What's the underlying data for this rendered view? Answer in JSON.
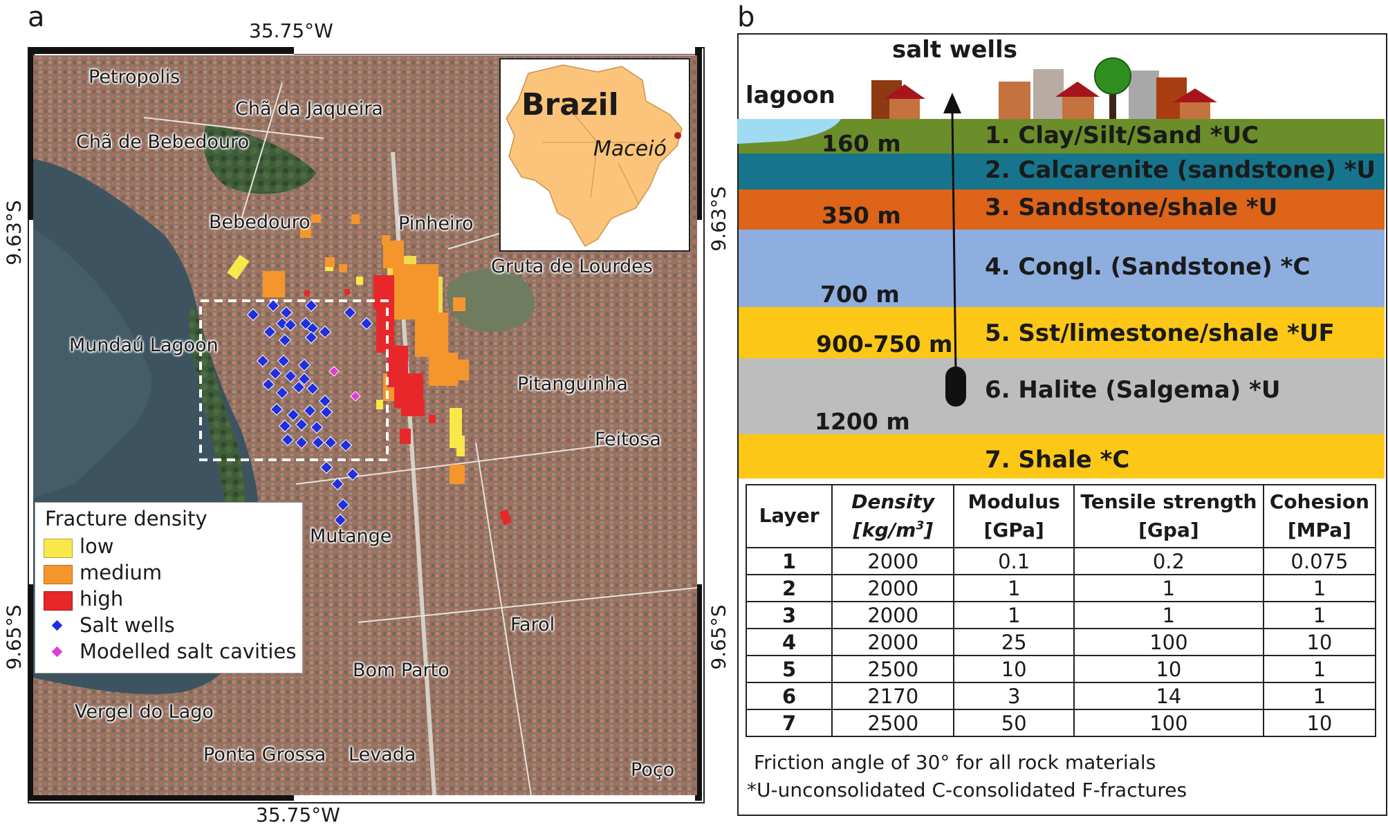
{
  "panel_a": {
    "letter": "a",
    "coords": {
      "top_lon": "35.75°W",
      "bottom_lon": "35.75°W",
      "left_lat_upper": "9.63°S",
      "left_lat_lower": "9.65°S",
      "right_lat_upper": "9.63°S",
      "right_lat_lower": "9.65°S"
    },
    "places": {
      "petropolis": "Petropolis",
      "cha_jaqueira": "Chã da Jaqueira",
      "cha_bebedouro": "Chã de Bebedouro",
      "bebedouro": "Bebedouro",
      "pinheiro": "Pinheiro",
      "gruta": "Gruta de Lourdes",
      "mundau": "Mundaú Lagoon",
      "pitanguinha": "Pitanguinha",
      "feitosa": "Feitosa",
      "mutange": "Mutange",
      "farol": "Farol",
      "bom_parto": "Bom Parto",
      "vergel": "Vergel do Lago",
      "ponta_grossa": "Ponta Grossa",
      "levada": "Levada",
      "poco": "Poço"
    },
    "inset": {
      "country": "Brazil",
      "city": "Maceió"
    },
    "legend": {
      "title": "Fracture density",
      "low": "low",
      "medium": "medium",
      "high": "high",
      "salt_wells": "Salt wells",
      "cavities": "Modelled salt cavities"
    },
    "colors": {
      "low": "#f8e84a",
      "medium": "#f5962c",
      "high": "#e8272b",
      "salt_wells": "#1f2ee0",
      "cavities": "#e23ad4",
      "lagoon": "#3d5460",
      "urban": "#8b6f5e"
    }
  },
  "panel_b": {
    "letter": "b",
    "top_labels": {
      "salt_wells": "salt wells",
      "lagoon": "lagoon"
    },
    "layers": [
      {
        "label": "1. Clay/Silt/Sand *UC",
        "color": "#6b8e2a"
      },
      {
        "label": "2. Calcarenite (sandstone) *U",
        "color": "#16758c"
      },
      {
        "label": "3. Sandstone/shale *U",
        "color": "#dd6419"
      },
      {
        "label": "4. Congl. (Sandstone) *C",
        "color": "#8eaee0"
      },
      {
        "label": "5. Sst/limestone/shale *UF",
        "color": "#fcc716"
      },
      {
        "label": "6. Halite (Salgema) *U",
        "color": "#bdbdbd"
      },
      {
        "label": "7. Shale *C",
        "color": "#fcc716"
      }
    ],
    "depths": {
      "d160": "160 m",
      "d350": "350 m",
      "d700": "700 m",
      "d900": "900-750 m",
      "d1200": "1200 m"
    },
    "table": {
      "headers": {
        "layer": "Layer",
        "density": "Density",
        "density_unit_pre": "[kg/m",
        "density_unit_sup": "3",
        "density_unit_post": "]",
        "modulus": "Modulus",
        "modulus_unit": "[GPa]",
        "tensile": "Tensile strength",
        "tensile_unit": "[Gpa]",
        "cohesion": "Cohesion",
        "cohesion_unit": "[MPa]"
      },
      "rows": [
        [
          "1",
          "2000",
          "0.1",
          "0.2",
          "0.075"
        ],
        [
          "2",
          "2000",
          "1",
          "1",
          "1"
        ],
        [
          "3",
          "2000",
          "1",
          "1",
          "1"
        ],
        [
          "4",
          "2000",
          "25",
          "100",
          "10"
        ],
        [
          "5",
          "2500",
          "10",
          "10",
          "1"
        ],
        [
          "6",
          "2170",
          "3",
          "14",
          "1"
        ],
        [
          "7",
          "2500",
          "50",
          "100",
          "10"
        ]
      ]
    },
    "notes": {
      "friction": "Friction angle of 30° for all rock materials",
      "abbrev": "*U-unconsolidated C-consolidated F-fractures"
    }
  }
}
